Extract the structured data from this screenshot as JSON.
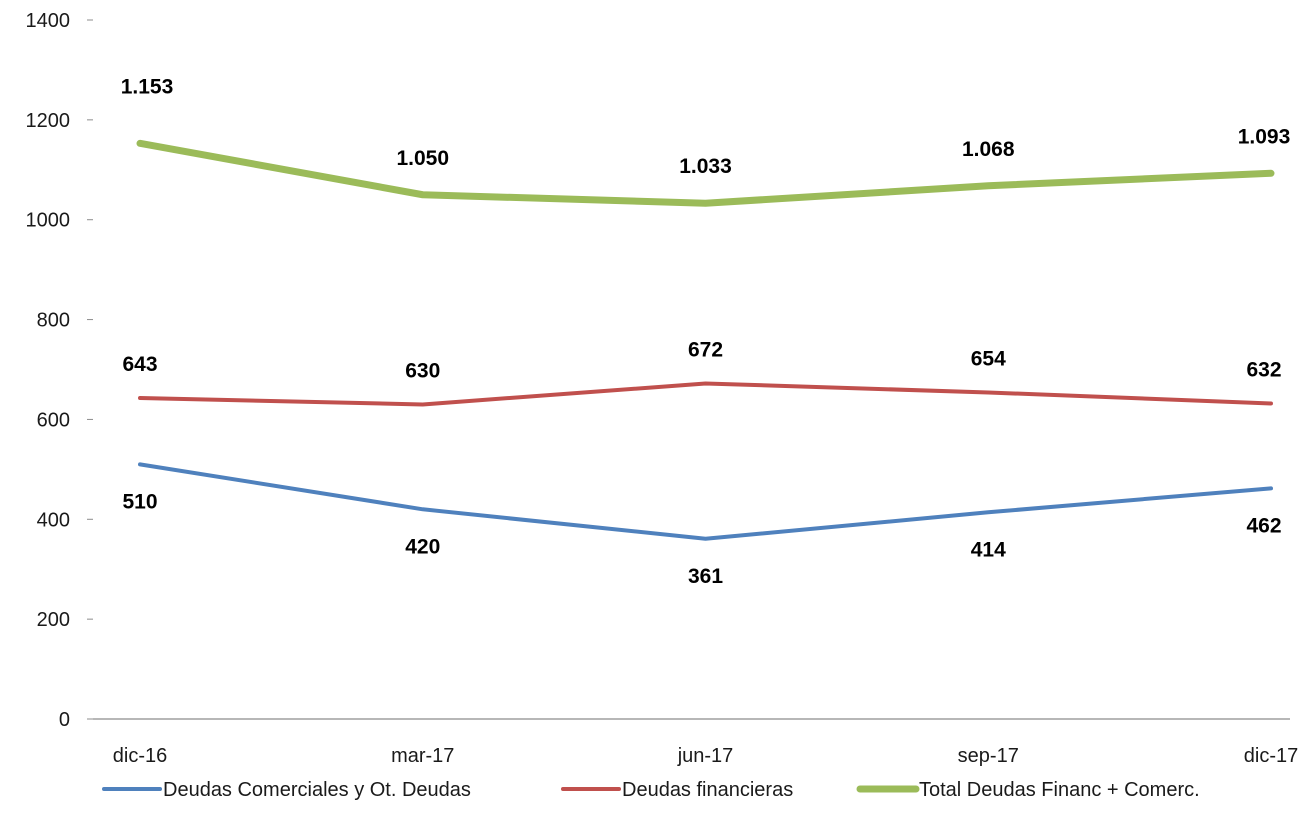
{
  "chart_data": {
    "type": "line",
    "title": "",
    "xlabel": "",
    "ylabel": "",
    "categories": [
      "dic-16",
      "mar-17",
      "jun-17",
      "sep-17",
      "dic-17"
    ],
    "ylim": [
      0,
      1400
    ],
    "yticks": [
      0,
      200,
      400,
      600,
      800,
      1000,
      1200,
      1400
    ],
    "grid": false,
    "legend_position": "bottom",
    "series": [
      {
        "name": "Deudas Comerciales y Ot. Deudas",
        "color": "#4F81BD",
        "values": [
          510,
          420,
          361,
          414,
          462
        ],
        "labels": [
          "510",
          "420",
          "361",
          "414",
          "462"
        ],
        "label_position": [
          "below",
          "below",
          "below",
          "below",
          "below"
        ]
      },
      {
        "name": "Deudas financieras",
        "color": "#C0504D",
        "values": [
          643,
          630,
          672,
          654,
          632
        ],
        "labels": [
          "643",
          "630",
          "672",
          "654",
          "632"
        ],
        "label_position": [
          "above",
          "above",
          "above",
          "above",
          "above"
        ]
      },
      {
        "name": "Total Deudas Financ + Comerc.",
        "color": "#9BBB59",
        "values": [
          1153,
          1050,
          1033,
          1068,
          1093
        ],
        "labels": [
          "1.153",
          "1.050",
          "1.033",
          "1.068",
          "1.093"
        ],
        "label_position": [
          "above",
          "above",
          "above",
          "above",
          "above"
        ]
      }
    ]
  }
}
